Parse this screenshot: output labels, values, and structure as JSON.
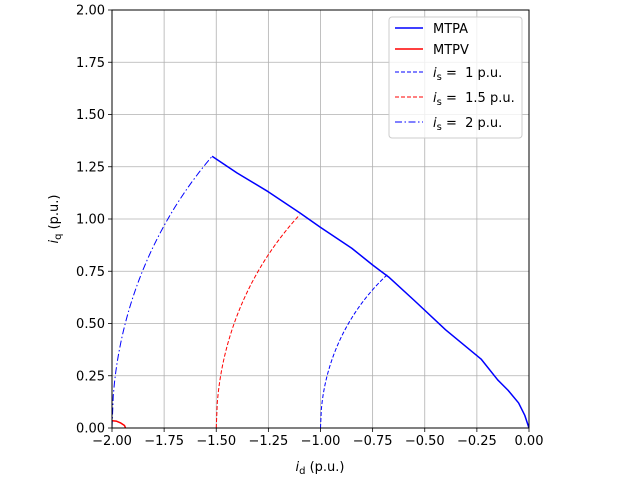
{
  "chart_data": {
    "type": "line",
    "title": "",
    "xlabel": {
      "main": "i",
      "sub": "d",
      "suffix": " (p.u.)"
    },
    "ylabel": {
      "main": "i",
      "sub": "q",
      "suffix": " (p.u.)"
    },
    "xlim": [
      -2.0,
      0.0
    ],
    "ylim": [
      0.0,
      2.0
    ],
    "xticks": [
      "−2.00",
      "−1.75",
      "−1.50",
      "−1.25",
      "−1.00",
      "−0.75",
      "−0.50",
      "−0.25",
      "0.00"
    ],
    "xtick_values": [
      -2.0,
      -1.75,
      -1.5,
      -1.25,
      -1.0,
      -0.75,
      -0.5,
      -0.25,
      0.0
    ],
    "yticks": [
      "0.00",
      "0.25",
      "0.50",
      "0.75",
      "1.00",
      "1.25",
      "1.50",
      "1.75",
      "2.00"
    ],
    "ytick_values": [
      0.0,
      0.25,
      0.5,
      0.75,
      1.0,
      1.25,
      1.5,
      1.75,
      2.0
    ],
    "grid": true,
    "legend_position": "top-right",
    "series": [
      {
        "name": "MTPA",
        "legend": {
          "text": "MTPA"
        },
        "color": "#0000ff",
        "style": "solid",
        "points": [
          [
            0.0,
            0.0
          ],
          [
            -0.02,
            0.06
          ],
          [
            -0.05,
            0.12
          ],
          [
            -0.1,
            0.18
          ],
          [
            -0.15,
            0.23
          ],
          [
            -0.23,
            0.33
          ],
          [
            -0.4,
            0.47
          ],
          [
            -0.55,
            0.61
          ],
          [
            -0.67,
            0.72
          ],
          [
            -0.75,
            0.78
          ],
          [
            -0.85,
            0.86
          ],
          [
            -1.0,
            0.96
          ],
          [
            -1.1,
            1.03
          ],
          [
            -1.25,
            1.13
          ],
          [
            -1.4,
            1.22
          ],
          [
            -1.52,
            1.3
          ]
        ]
      },
      {
        "name": "MTPV",
        "legend": {
          "text": "MTPV"
        },
        "color": "#ff0000",
        "style": "solid",
        "points": [
          [
            -2.0,
            0.035
          ],
          [
            -1.98,
            0.033
          ],
          [
            -1.96,
            0.025
          ],
          [
            -1.94,
            0.012
          ],
          [
            -1.935,
            0.0
          ]
        ]
      },
      {
        "name": "i_s = 1 p.u.",
        "legend": {
          "main": "i",
          "sub": "s",
          "rest": " =  1 p.u."
        },
        "color": "#0000ff",
        "style": "dashed",
        "arc": {
          "radius": 1.0,
          "x_from": -1.0,
          "x_to": -0.68
        }
      },
      {
        "name": "i_s = 1.5 p.u.",
        "legend": {
          "main": "i",
          "sub": "s",
          "rest": " =  1.5 p.u."
        },
        "color": "#ff0000",
        "style": "dashed",
        "arc": {
          "radius": 1.5,
          "x_from": -1.5,
          "x_to": -1.1
        }
      },
      {
        "name": "i_s = 2 p.u.",
        "legend": {
          "main": "i",
          "sub": "s",
          "rest": " =  2 p.u."
        },
        "color": "#0000ff",
        "style": "dashdot",
        "arc": {
          "radius": 2.0,
          "x_from": -2.0,
          "x_to": -1.52
        }
      }
    ]
  }
}
